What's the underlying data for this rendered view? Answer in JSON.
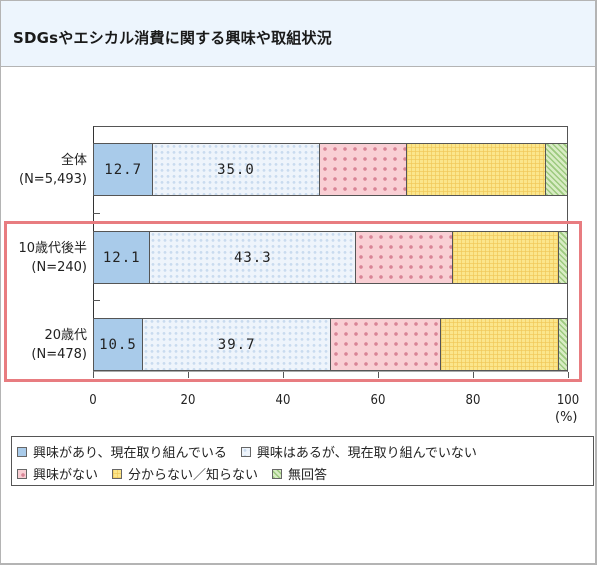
{
  "header": {
    "title": "SDGsやエシカル消費に関する興味や取組状況"
  },
  "chart_data": {
    "type": "bar",
    "orientation": "horizontal-stacked-100",
    "title": "SDGsやエシカル消費に関する興味や取組状況",
    "xlabel": "(%)",
    "ylabel": "",
    "xlim": [
      0,
      100
    ],
    "xticks": [
      "0",
      "20",
      "40",
      "60",
      "80",
      "100"
    ],
    "categories": [
      {
        "name": "全体",
        "n": "(N=5,493)"
      },
      {
        "name": "10歳代後半",
        "n": "(N=240)"
      },
      {
        "name": "20歳代",
        "n": "(N=478)"
      }
    ],
    "series": [
      {
        "name": "興味があり、現在取り組んでいる",
        "color": "#a9cbea",
        "values": [
          12.7,
          12.1,
          10.5
        ],
        "labels": [
          "12.7",
          "12.1",
          "10.5"
        ]
      },
      {
        "name": "興味はあるが、現在取り組んでいない",
        "color": "#e3edf8",
        "values": [
          35.0,
          43.3,
          39.7
        ],
        "labels": [
          "35.0",
          "43.3",
          "39.7"
        ]
      },
      {
        "name": "興味がない",
        "color": "#f9cfd4",
        "values": [
          18.4,
          20.4,
          23.1
        ],
        "labels": [
          "",
          "",
          ""
        ]
      },
      {
        "name": "分からない／知らない",
        "color": "#fbe68c",
        "values": [
          29.3,
          22.3,
          24.8
        ],
        "labels": [
          "",
          "",
          ""
        ]
      },
      {
        "name": "無回答",
        "color": "#c9e4b0",
        "values": [
          4.6,
          1.9,
          1.9
        ],
        "labels": [
          "",
          "",
          ""
        ]
      }
    ],
    "legend_position": "bottom",
    "grid": false,
    "highlight": {
      "categories": [
        "10歳代後半",
        "20歳代"
      ],
      "color": "#e87c80"
    }
  },
  "legend": {
    "row1": [
      "興味があり、現在取り組んでいる",
      "興味はあるが、現在取り組んでいない"
    ],
    "row2": [
      "興味がない",
      "分からない／知らない",
      "無回答"
    ]
  }
}
